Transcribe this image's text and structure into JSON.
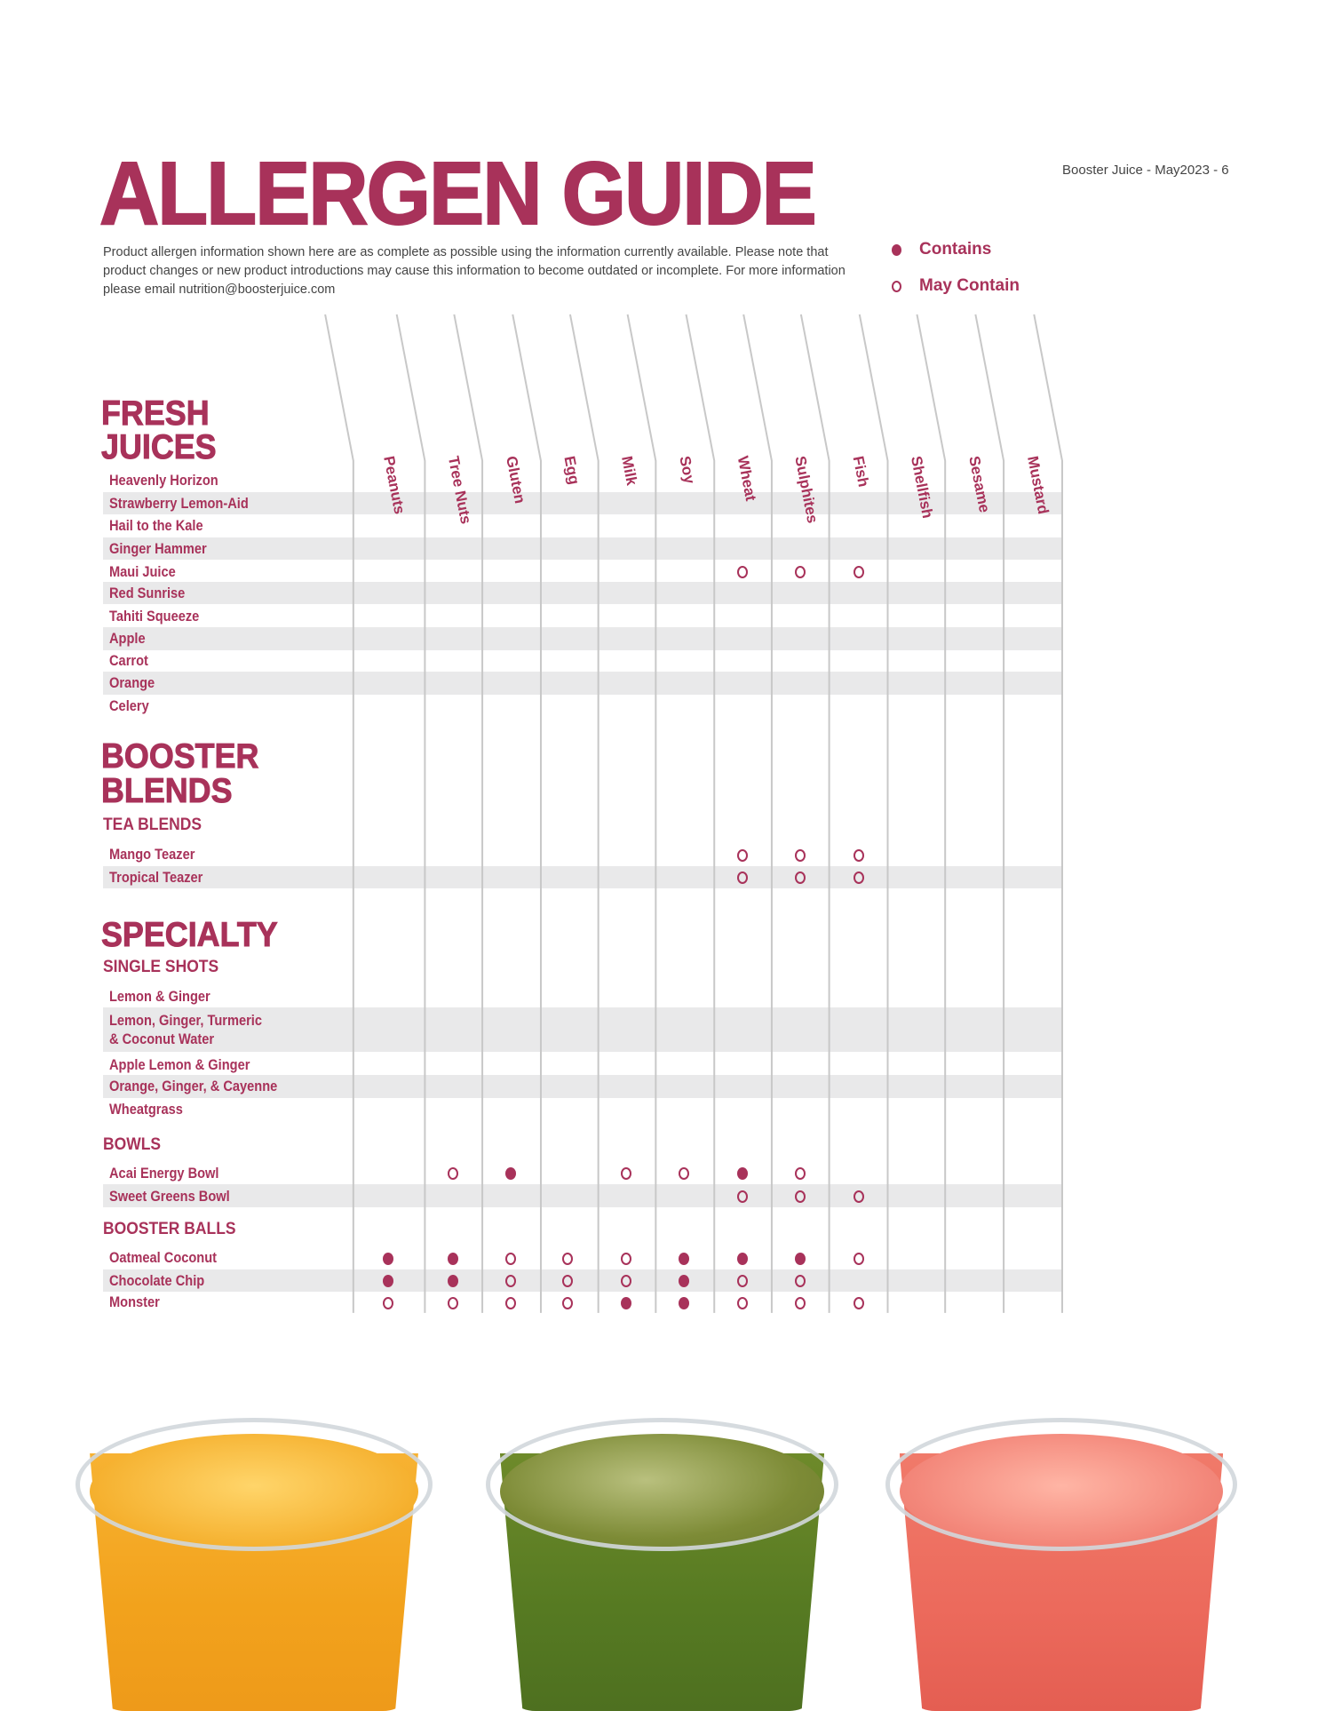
{
  "header": {
    "title": "ALLERGEN GUIDE",
    "page_ref": "Booster Juice - May2023 - 6",
    "description": "Product allergen information shown here are as complete as possible using the information currently available. Please note that product changes or new product introductions may cause this information to become outdated or incomplete. For more information please email  nutrition@boosterjuice.com"
  },
  "legend": {
    "contains": "Contains",
    "may_contain": "May Contain"
  },
  "colors": {
    "brand": "#a8325a",
    "row_shade": "#e9e9ea",
    "grid_line": "#c8c8c8"
  },
  "allergens": [
    "Peanuts",
    "Tree Nuts",
    "Gluten",
    "Egg",
    "Milk",
    "Soy",
    "Wheat",
    "Sulphites",
    "Fish",
    "Shellfish",
    "Sesame",
    "Mustard"
  ],
  "sections": [
    {
      "title": [
        "FRESH",
        "JUICES"
      ],
      "groups": [
        {
          "title": "",
          "items": [
            {
              "name": "Heavenly Horizon",
              "marks": [
                "",
                "",
                "",
                "",
                "",
                "",
                "",
                "",
                "",
                "",
                "",
                ""
              ]
            },
            {
              "name": "Strawberry Lemon-Aid",
              "marks": [
                "",
                "",
                "",
                "",
                "",
                "",
                "",
                "",
                "",
                "",
                "",
                ""
              ]
            },
            {
              "name": "Hail to the Kale",
              "marks": [
                "",
                "",
                "",
                "",
                "",
                "",
                "",
                "",
                "",
                "",
                "",
                ""
              ]
            },
            {
              "name": "Ginger Hammer",
              "marks": [
                "",
                "",
                "",
                "",
                "",
                "",
                "",
                "",
                "",
                "",
                "",
                ""
              ]
            },
            {
              "name": "Maui Juice",
              "marks": [
                "",
                "",
                "",
                "",
                "",
                "",
                "M",
                "M",
                "M",
                "",
                "",
                ""
              ]
            },
            {
              "name": "Red Sunrise",
              "marks": [
                "",
                "",
                "",
                "",
                "",
                "",
                "",
                "",
                "",
                "",
                "",
                ""
              ]
            },
            {
              "name": "Tahiti Squeeze",
              "marks": [
                "",
                "",
                "",
                "",
                "",
                "",
                "",
                "",
                "",
                "",
                "",
                ""
              ]
            },
            {
              "name": "Apple",
              "marks": [
                "",
                "",
                "",
                "",
                "",
                "",
                "",
                "",
                "",
                "",
                "",
                ""
              ]
            },
            {
              "name": "Carrot",
              "marks": [
                "",
                "",
                "",
                "",
                "",
                "",
                "",
                "",
                "",
                "",
                "",
                ""
              ]
            },
            {
              "name": "Orange",
              "marks": [
                "",
                "",
                "",
                "",
                "",
                "",
                "",
                "",
                "",
                "",
                "",
                ""
              ]
            },
            {
              "name": "Celery",
              "marks": [
                "",
                "",
                "",
                "",
                "",
                "",
                "",
                "",
                "",
                "",
                "",
                ""
              ]
            }
          ]
        }
      ]
    },
    {
      "title": [
        "BOOSTER",
        "BLENDS"
      ],
      "groups": [
        {
          "title": "TEA BLENDS",
          "items": [
            {
              "name": "Mango Teazer",
              "marks": [
                "",
                "",
                "",
                "",
                "",
                "",
                "M",
                "M",
                "M",
                "",
                "",
                ""
              ]
            },
            {
              "name": "Tropical Teazer",
              "marks": [
                "",
                "",
                "",
                "",
                "",
                "",
                "M",
                "M",
                "M",
                "",
                "",
                ""
              ]
            }
          ]
        }
      ]
    },
    {
      "title": [
        "SPECIALTY"
      ],
      "groups": [
        {
          "title": "SINGLE SHOTS",
          "items": [
            {
              "name": "Lemon & Ginger",
              "marks": [
                "",
                "",
                "",
                "",
                "",
                "",
                "",
                "",
                "",
                "",
                "",
                ""
              ]
            },
            {
              "name": "Lemon, Ginger, Turmeric",
              "name2": "& Coconut Water",
              "marks": [
                "",
                "",
                "",
                "",
                "",
                "",
                "",
                "",
                "",
                "",
                "",
                ""
              ]
            },
            {
              "name": "Apple Lemon & Ginger",
              "marks": [
                "",
                "",
                "",
                "",
                "",
                "",
                "",
                "",
                "",
                "",
                "",
                ""
              ]
            },
            {
              "name": "Orange, Ginger, & Cayenne",
              "marks": [
                "",
                "",
                "",
                "",
                "",
                "",
                "",
                "",
                "",
                "",
                "",
                ""
              ]
            },
            {
              "name": "Wheatgrass",
              "marks": [
                "",
                "",
                "",
                "",
                "",
                "",
                "",
                "",
                "",
                "",
                "",
                ""
              ]
            }
          ]
        },
        {
          "title": "BOWLS",
          "items": [
            {
              "name": "Acai Energy Bowl",
              "marks": [
                "",
                "M",
                "C",
                "",
                "M",
                "M",
                "C",
                "M",
                "",
                "",
                "",
                ""
              ]
            },
            {
              "name": "Sweet Greens Bowl",
              "marks": [
                "",
                "",
                "",
                "",
                "",
                "",
                "M",
                "M",
                "M",
                "",
                "",
                ""
              ]
            }
          ]
        },
        {
          "title": "BOOSTER BALLS",
          "items": [
            {
              "name": "Oatmeal Coconut",
              "marks": [
                "C",
                "C",
                "M",
                "M",
                "M",
                "C",
                "C",
                "C",
                "M",
                "",
                "",
                ""
              ]
            },
            {
              "name": "Chocolate Chip",
              "marks": [
                "C",
                "C",
                "M",
                "M",
                "M",
                "C",
                "M",
                "M",
                "",
                "",
                "",
                ""
              ]
            },
            {
              "name": "Monster",
              "marks": [
                "M",
                "M",
                "M",
                "M",
                "C",
                "C",
                "M",
                "M",
                "M",
                "",
                "",
                ""
              ]
            }
          ]
        }
      ]
    }
  ]
}
